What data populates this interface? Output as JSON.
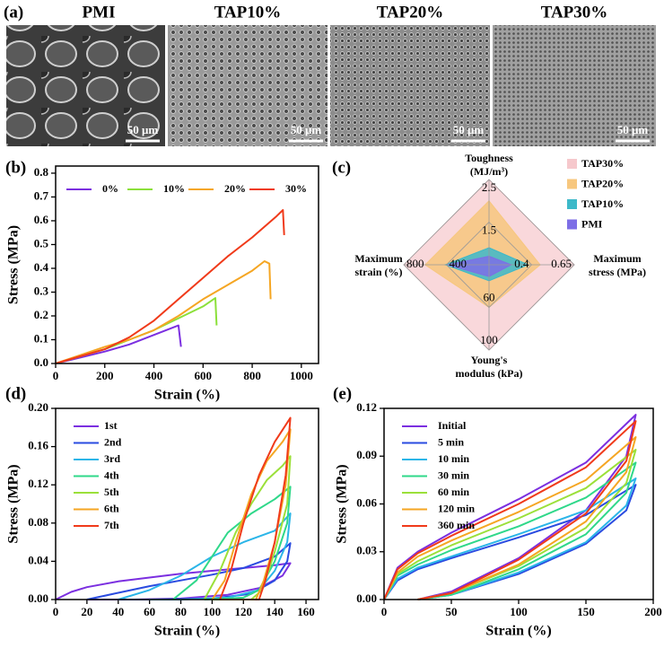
{
  "panel_labels": [
    "(a)",
    "(b)",
    "(c)",
    "(d)",
    "(e)"
  ],
  "images": [
    {
      "label": "PMI",
      "scale_bar": "50 μm"
    },
    {
      "label": "TAP10%",
      "scale_bar": "50 μm"
    },
    {
      "label": "TAP20%",
      "scale_bar": "50 μm"
    },
    {
      "label": "TAP30%",
      "scale_bar": "50 μm"
    }
  ],
  "chart_data": [
    {
      "type": "line",
      "xlabel": "Strain (%)",
      "ylabel": "Stress (MPa)",
      "xlim": [
        0,
        1070
      ],
      "ylim": [
        0,
        0.83
      ],
      "xticks": [
        0,
        200,
        400,
        600,
        800,
        1000
      ],
      "yticks": [
        {
          "value": 0,
          "label": "0.0"
        },
        0.1,
        0.2,
        0.3,
        0.4,
        0.5,
        0.6,
        0.7,
        0.8
      ],
      "legend": "top",
      "series": [
        {
          "name": "0%",
          "color": "#7b2fe0",
          "x": [
            0,
            100,
            200,
            300,
            400,
            500,
            510
          ],
          "values": [
            0,
            0.025,
            0.05,
            0.08,
            0.12,
            0.16,
            0.07
          ]
        },
        {
          "name": "10%",
          "color": "#8be03a",
          "x": [
            0,
            100,
            200,
            300,
            400,
            500,
            600,
            650,
            655
          ],
          "values": [
            0,
            0.03,
            0.06,
            0.1,
            0.14,
            0.19,
            0.24,
            0.275,
            0.16
          ]
        },
        {
          "name": "20%",
          "color": "#f5a623",
          "x": [
            0,
            100,
            200,
            300,
            400,
            500,
            600,
            700,
            800,
            850,
            870,
            875
          ],
          "values": [
            0,
            0.035,
            0.07,
            0.1,
            0.14,
            0.2,
            0.27,
            0.33,
            0.39,
            0.43,
            0.42,
            0.27
          ]
        },
        {
          "name": "30%",
          "color": "#f03a1a",
          "x": [
            0,
            100,
            200,
            300,
            400,
            500,
            600,
            700,
            800,
            900,
            925,
            930
          ],
          "values": [
            0,
            0.03,
            0.06,
            0.11,
            0.18,
            0.27,
            0.36,
            0.45,
            0.53,
            0.62,
            0.645,
            0.54
          ]
        }
      ]
    },
    {
      "type": "radar",
      "axes": [
        {
          "label": [
            "Toughness",
            "(MJ/m³)"
          ],
          "lim": [
            0.5,
            2.5
          ],
          "ticks": [
            1.5,
            2.5
          ]
        },
        {
          "label": [
            "Maximum",
            "stress (MPa)"
          ],
          "lim": [
            0.15,
            0.65
          ],
          "ticks": [
            0.4,
            0.65
          ]
        },
        {
          "label": [
            "Young's",
            "modulus (kPa)"
          ],
          "lim": [
            20,
            100
          ],
          "ticks": [
            60,
            100
          ]
        },
        {
          "label": [
            "Maximum",
            "strain (%)"
          ],
          "lim": [
            0,
            800
          ],
          "ticks": [
            400,
            800
          ]
        }
      ],
      "series": [
        {
          "name": "TAP30%",
          "color": "#f6c8cc",
          "values": [
            2.5,
            0.65,
            100,
            800
          ]
        },
        {
          "name": "TAP20%",
          "color": "#f7c77e",
          "values": [
            2.0,
            0.45,
            60,
            600
          ]
        },
        {
          "name": "TAP10%",
          "color": "#3db9c9",
          "values": [
            0.9,
            0.38,
            35,
            410
          ]
        },
        {
          "name": "PMI",
          "color": "#7d6ee6",
          "values": [
            0.7,
            0.28,
            31,
            390
          ]
        }
      ]
    },
    {
      "type": "line",
      "xlabel": "Strain (%)",
      "ylabel": "Stress (MPa)",
      "xlim": [
        0,
        168
      ],
      "ylim": [
        0,
        0.2
      ],
      "xticks": [
        0,
        20,
        40,
        60,
        80,
        100,
        120,
        140,
        160
      ],
      "yticks": [
        {
          "value": 0,
          "label": "0.00"
        },
        0.04,
        0.08,
        0.12,
        0.16,
        {
          "value": 0.2,
          "label": "0.20"
        }
      ],
      "legend": "top-left",
      "series": [
        {
          "name": "1st",
          "color": "#7b2fe0",
          "x": [
            0,
            10,
            20,
            40,
            60,
            80,
            100,
            120,
            140,
            150,
            145,
            130,
            110,
            80,
            50,
            20
          ],
          "values": [
            0,
            0.008,
            0.013,
            0.019,
            0.023,
            0.027,
            0.03,
            0.033,
            0.036,
            0.038,
            0.025,
            0.012,
            0.005,
            0.001,
            0,
            0
          ]
        },
        {
          "name": "2nd",
          "color": "#2a4be0",
          "x": [
            20,
            40,
            60,
            80,
            100,
            120,
            140,
            150,
            148,
            140,
            125,
            100,
            60,
            40
          ],
          "values": [
            0,
            0.007,
            0.014,
            0.02,
            0.026,
            0.033,
            0.045,
            0.059,
            0.04,
            0.02,
            0.006,
            0.001,
            0,
            0
          ]
        },
        {
          "name": "3rd",
          "color": "#2bb5e8",
          "x": [
            40,
            60,
            80,
            100,
            120,
            140,
            150,
            148,
            140,
            130,
            110,
            80,
            60
          ],
          "values": [
            0,
            0.01,
            0.025,
            0.045,
            0.06,
            0.072,
            0.09,
            0.06,
            0.03,
            0.01,
            0.002,
            0,
            0
          ]
        },
        {
          "name": "4th",
          "color": "#2fd88a",
          "x": [
            75,
            90,
            100,
            110,
            125,
            140,
            150,
            148,
            140,
            130,
            120,
            95
          ],
          "values": [
            0,
            0.02,
            0.045,
            0.07,
            0.09,
            0.105,
            0.118,
            0.08,
            0.04,
            0.01,
            0.002,
            0
          ]
        },
        {
          "name": "5th",
          "color": "#9be03a",
          "x": [
            95,
            105,
            115,
            125,
            135,
            145,
            150,
            148,
            140,
            132,
            125,
            100
          ],
          "values": [
            0,
            0.03,
            0.07,
            0.1,
            0.125,
            0.14,
            0.15,
            0.1,
            0.05,
            0.01,
            0,
            0
          ]
        },
        {
          "name": "6th",
          "color": "#f5a623",
          "x": [
            100,
            108,
            115,
            125,
            135,
            145,
            150,
            147,
            140,
            133,
            128,
            105
          ],
          "values": [
            0,
            0.02,
            0.06,
            0.11,
            0.145,
            0.165,
            0.178,
            0.12,
            0.06,
            0.02,
            0,
            0
          ]
        },
        {
          "name": "7th",
          "color": "#f03a1a",
          "x": [
            105,
            112,
            120,
            130,
            140,
            150,
            147,
            140,
            134,
            130,
            127
          ],
          "values": [
            0,
            0.03,
            0.08,
            0.13,
            0.165,
            0.19,
            0.13,
            0.06,
            0.02,
            0,
            0
          ]
        }
      ]
    },
    {
      "type": "line",
      "xlabel": "Strain (%)",
      "ylabel": "Stress (MPa)",
      "xlim": [
        0,
        200
      ],
      "ylim": [
        0,
        0.12
      ],
      "xticks": [
        0,
        50,
        100,
        150,
        200
      ],
      "yticks": [
        {
          "value": 0,
          "label": "0.00"
        },
        0.03,
        0.06,
        0.09,
        0.12
      ],
      "legend": "top-left",
      "x": [
        0,
        10,
        25,
        50,
        100,
        150,
        187,
        180,
        150,
        100,
        50,
        25
      ],
      "series": [
        {
          "name": "Initial",
          "color": "#7b2fe0",
          "values": [
            0,
            0.02,
            0.03,
            0.042,
            0.063,
            0.086,
            0.116,
            0.09,
            0.056,
            0.026,
            0.005,
            0
          ]
        },
        {
          "name": "5 min",
          "color": "#2a4be0",
          "values": [
            0,
            0.012,
            0.019,
            0.026,
            0.039,
            0.053,
            0.072,
            0.056,
            0.035,
            0.016,
            0.003,
            0
          ]
        },
        {
          "name": "10 min",
          "color": "#2bb5e8",
          "values": [
            0,
            0.013,
            0.02,
            0.027,
            0.041,
            0.056,
            0.076,
            0.059,
            0.036,
            0.017,
            0.003,
            0
          ]
        },
        {
          "name": "30 min",
          "color": "#2fd88a",
          "values": [
            0,
            0.015,
            0.022,
            0.031,
            0.046,
            0.064,
            0.086,
            0.067,
            0.041,
            0.019,
            0.003,
            0
          ]
        },
        {
          "name": "60 min",
          "color": "#9be03a",
          "values": [
            0,
            0.016,
            0.024,
            0.034,
            0.051,
            0.07,
            0.094,
            0.073,
            0.045,
            0.021,
            0.004,
            0
          ]
        },
        {
          "name": "120 min",
          "color": "#f5a623",
          "values": [
            0,
            0.017,
            0.027,
            0.037,
            0.055,
            0.075,
            0.102,
            0.08,
            0.049,
            0.022,
            0.004,
            0
          ]
        },
        {
          "name": "360 min",
          "color": "#f03a1a",
          "values": [
            0,
            0.019,
            0.029,
            0.04,
            0.06,
            0.083,
            0.112,
            0.087,
            0.054,
            0.025,
            0.004,
            0
          ]
        }
      ]
    }
  ]
}
